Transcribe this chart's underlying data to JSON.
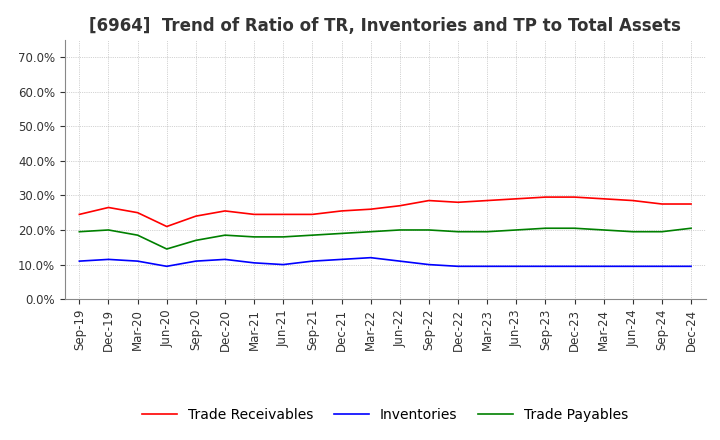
{
  "title": "[6964]  Trend of Ratio of TR, Inventories and TP to Total Assets",
  "x_labels": [
    "Sep-19",
    "Dec-19",
    "Mar-20",
    "Jun-20",
    "Sep-20",
    "Dec-20",
    "Mar-21",
    "Jun-21",
    "Sep-21",
    "Dec-21",
    "Mar-22",
    "Jun-22",
    "Sep-22",
    "Dec-22",
    "Mar-23",
    "Jun-23",
    "Sep-23",
    "Dec-23",
    "Mar-24",
    "Jun-24",
    "Sep-24",
    "Dec-24"
  ],
  "trade_receivables": [
    24.5,
    26.5,
    25.0,
    21.0,
    24.0,
    25.5,
    24.5,
    24.5,
    24.5,
    25.5,
    26.0,
    27.0,
    28.5,
    28.0,
    28.5,
    29.0,
    29.5,
    29.5,
    29.0,
    28.5,
    27.5,
    27.5
  ],
  "inventories": [
    11.0,
    11.5,
    11.0,
    9.5,
    11.0,
    11.5,
    10.5,
    10.0,
    11.0,
    11.5,
    12.0,
    11.0,
    10.0,
    9.5,
    9.5,
    9.5,
    9.5,
    9.5,
    9.5,
    9.5,
    9.5,
    9.5
  ],
  "trade_payables": [
    19.5,
    20.0,
    18.5,
    14.5,
    17.0,
    18.5,
    18.0,
    18.0,
    18.5,
    19.0,
    19.5,
    20.0,
    20.0,
    19.5,
    19.5,
    20.0,
    20.5,
    20.5,
    20.0,
    19.5,
    19.5,
    20.5
  ],
  "ylim": [
    0,
    75
  ],
  "yticks": [
    0,
    10,
    20,
    30,
    40,
    50,
    60,
    70
  ],
  "tr_color": "#ff0000",
  "inv_color": "#0000ff",
  "tp_color": "#008000",
  "background_color": "#ffffff",
  "grid_color": "#aaaaaa",
  "title_fontsize": 12,
  "tick_fontsize": 8.5,
  "legend_fontsize": 10
}
